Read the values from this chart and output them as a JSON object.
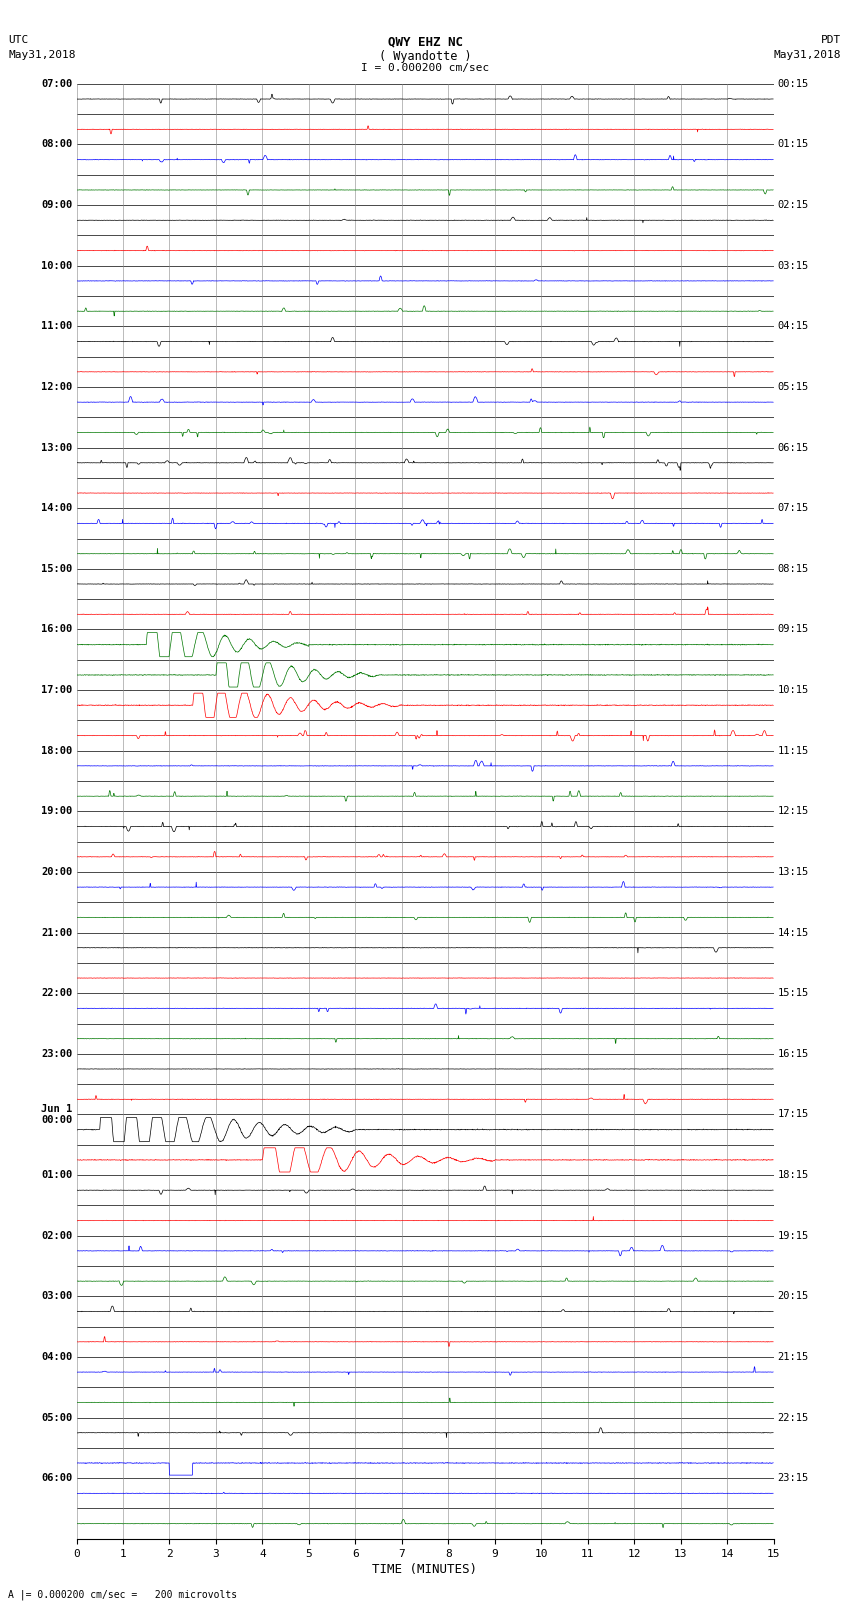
{
  "title_line1": "QWY EHZ NC",
  "title_line2": "( Wyandotte )",
  "scale_label": "I = 0.000200 cm/sec",
  "utc_label": "UTC",
  "pdt_label": "PDT",
  "date_left": "May31,2018",
  "date_right": "May31,2018",
  "bottom_note": "A |= 0.000200 cm/sec =   200 microvolts",
  "xlabel": "TIME (MINUTES)",
  "left_times": [
    "07:00",
    "",
    "08:00",
    "",
    "09:00",
    "",
    "10:00",
    "",
    "11:00",
    "",
    "12:00",
    "",
    "13:00",
    "",
    "14:00",
    "",
    "15:00",
    "",
    "16:00",
    "",
    "17:00",
    "",
    "18:00",
    "",
    "19:00",
    "",
    "20:00",
    "",
    "21:00",
    "",
    "22:00",
    "",
    "23:00",
    "",
    "Jun 1\n00:00",
    "",
    "01:00",
    "",
    "02:00",
    "",
    "03:00",
    "",
    "04:00",
    "",
    "05:00",
    "",
    "06:00",
    ""
  ],
  "right_times": [
    "00:15",
    "",
    "01:15",
    "",
    "02:15",
    "",
    "03:15",
    "",
    "04:15",
    "",
    "05:15",
    "",
    "06:15",
    "",
    "07:15",
    "",
    "08:15",
    "",
    "09:15",
    "",
    "10:15",
    "",
    "11:15",
    "",
    "12:15",
    "",
    "13:15",
    "",
    "14:15",
    "",
    "15:15",
    "",
    "16:15",
    "",
    "17:15",
    "",
    "18:15",
    "",
    "19:15",
    "",
    "20:15",
    "",
    "21:15",
    "",
    "22:15",
    "",
    "23:15",
    ""
  ],
  "n_rows": 48,
  "bg_color": "#ffffff",
  "trace_colors": [
    "#000000",
    "#ff0000",
    "#0000ff",
    "#007700"
  ],
  "grid_color": "#000000",
  "title_fontsize": 9,
  "label_fontsize": 7.5,
  "tick_fontsize": 8
}
